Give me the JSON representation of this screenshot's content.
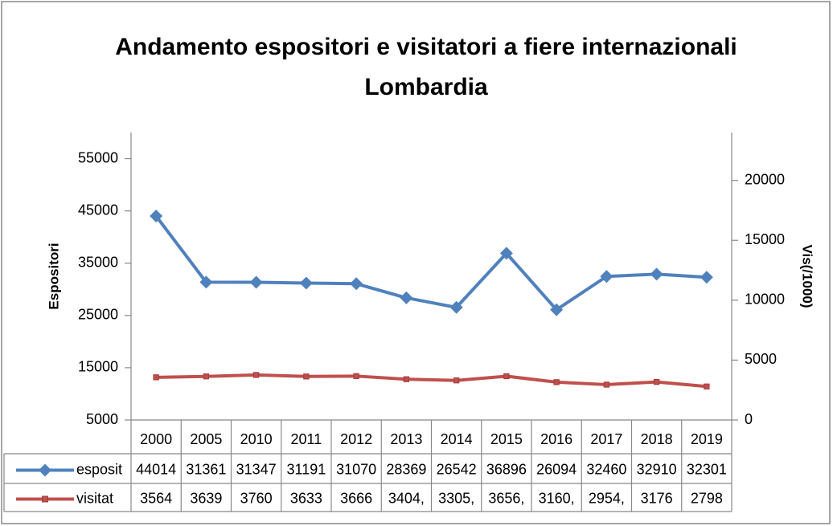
{
  "chart_data": {
    "type": "line",
    "title": [
      "Andamento espositori e visitatori a fiere internazionali",
      "Lombardia"
    ],
    "ylabel": "Espositori",
    "y2label": "Vis(/1000)",
    "categories": [
      "2000",
      "2005",
      "2010",
      "2011",
      "2012",
      "2013",
      "2014",
      "2015",
      "2016",
      "2017",
      "2018",
      "2019"
    ],
    "series": [
      {
        "name": "esposit",
        "color": "#4f81bd",
        "marker": "diamond",
        "values": [
          44014,
          31361,
          31347,
          31191,
          31070,
          28369,
          26542,
          36896,
          26094,
          32460,
          32910,
          32301
        ]
      },
      {
        "name": "visitat",
        "color": "#c0504d",
        "marker": "square",
        "axis": "y2",
        "values": [
          3564,
          3639,
          3760,
          3633,
          3666,
          3404,
          3305,
          3656,
          3160,
          2954,
          3176,
          2798
        ],
        "value_labels": [
          "3564",
          "3639",
          "3760",
          "3633",
          "3666",
          "3404,",
          "3305,",
          "3656,",
          "3160,",
          "2954,",
          "3176",
          "2798"
        ]
      }
    ],
    "ylim": [
      5000,
      60000
    ],
    "yticks": [
      5000,
      15000,
      25000,
      35000,
      45000,
      55000
    ],
    "y2lim": [
      0,
      24000
    ],
    "y2ticks": [
      0,
      5000,
      10000,
      15000,
      20000
    ],
    "grid": false,
    "data_table": true
  }
}
